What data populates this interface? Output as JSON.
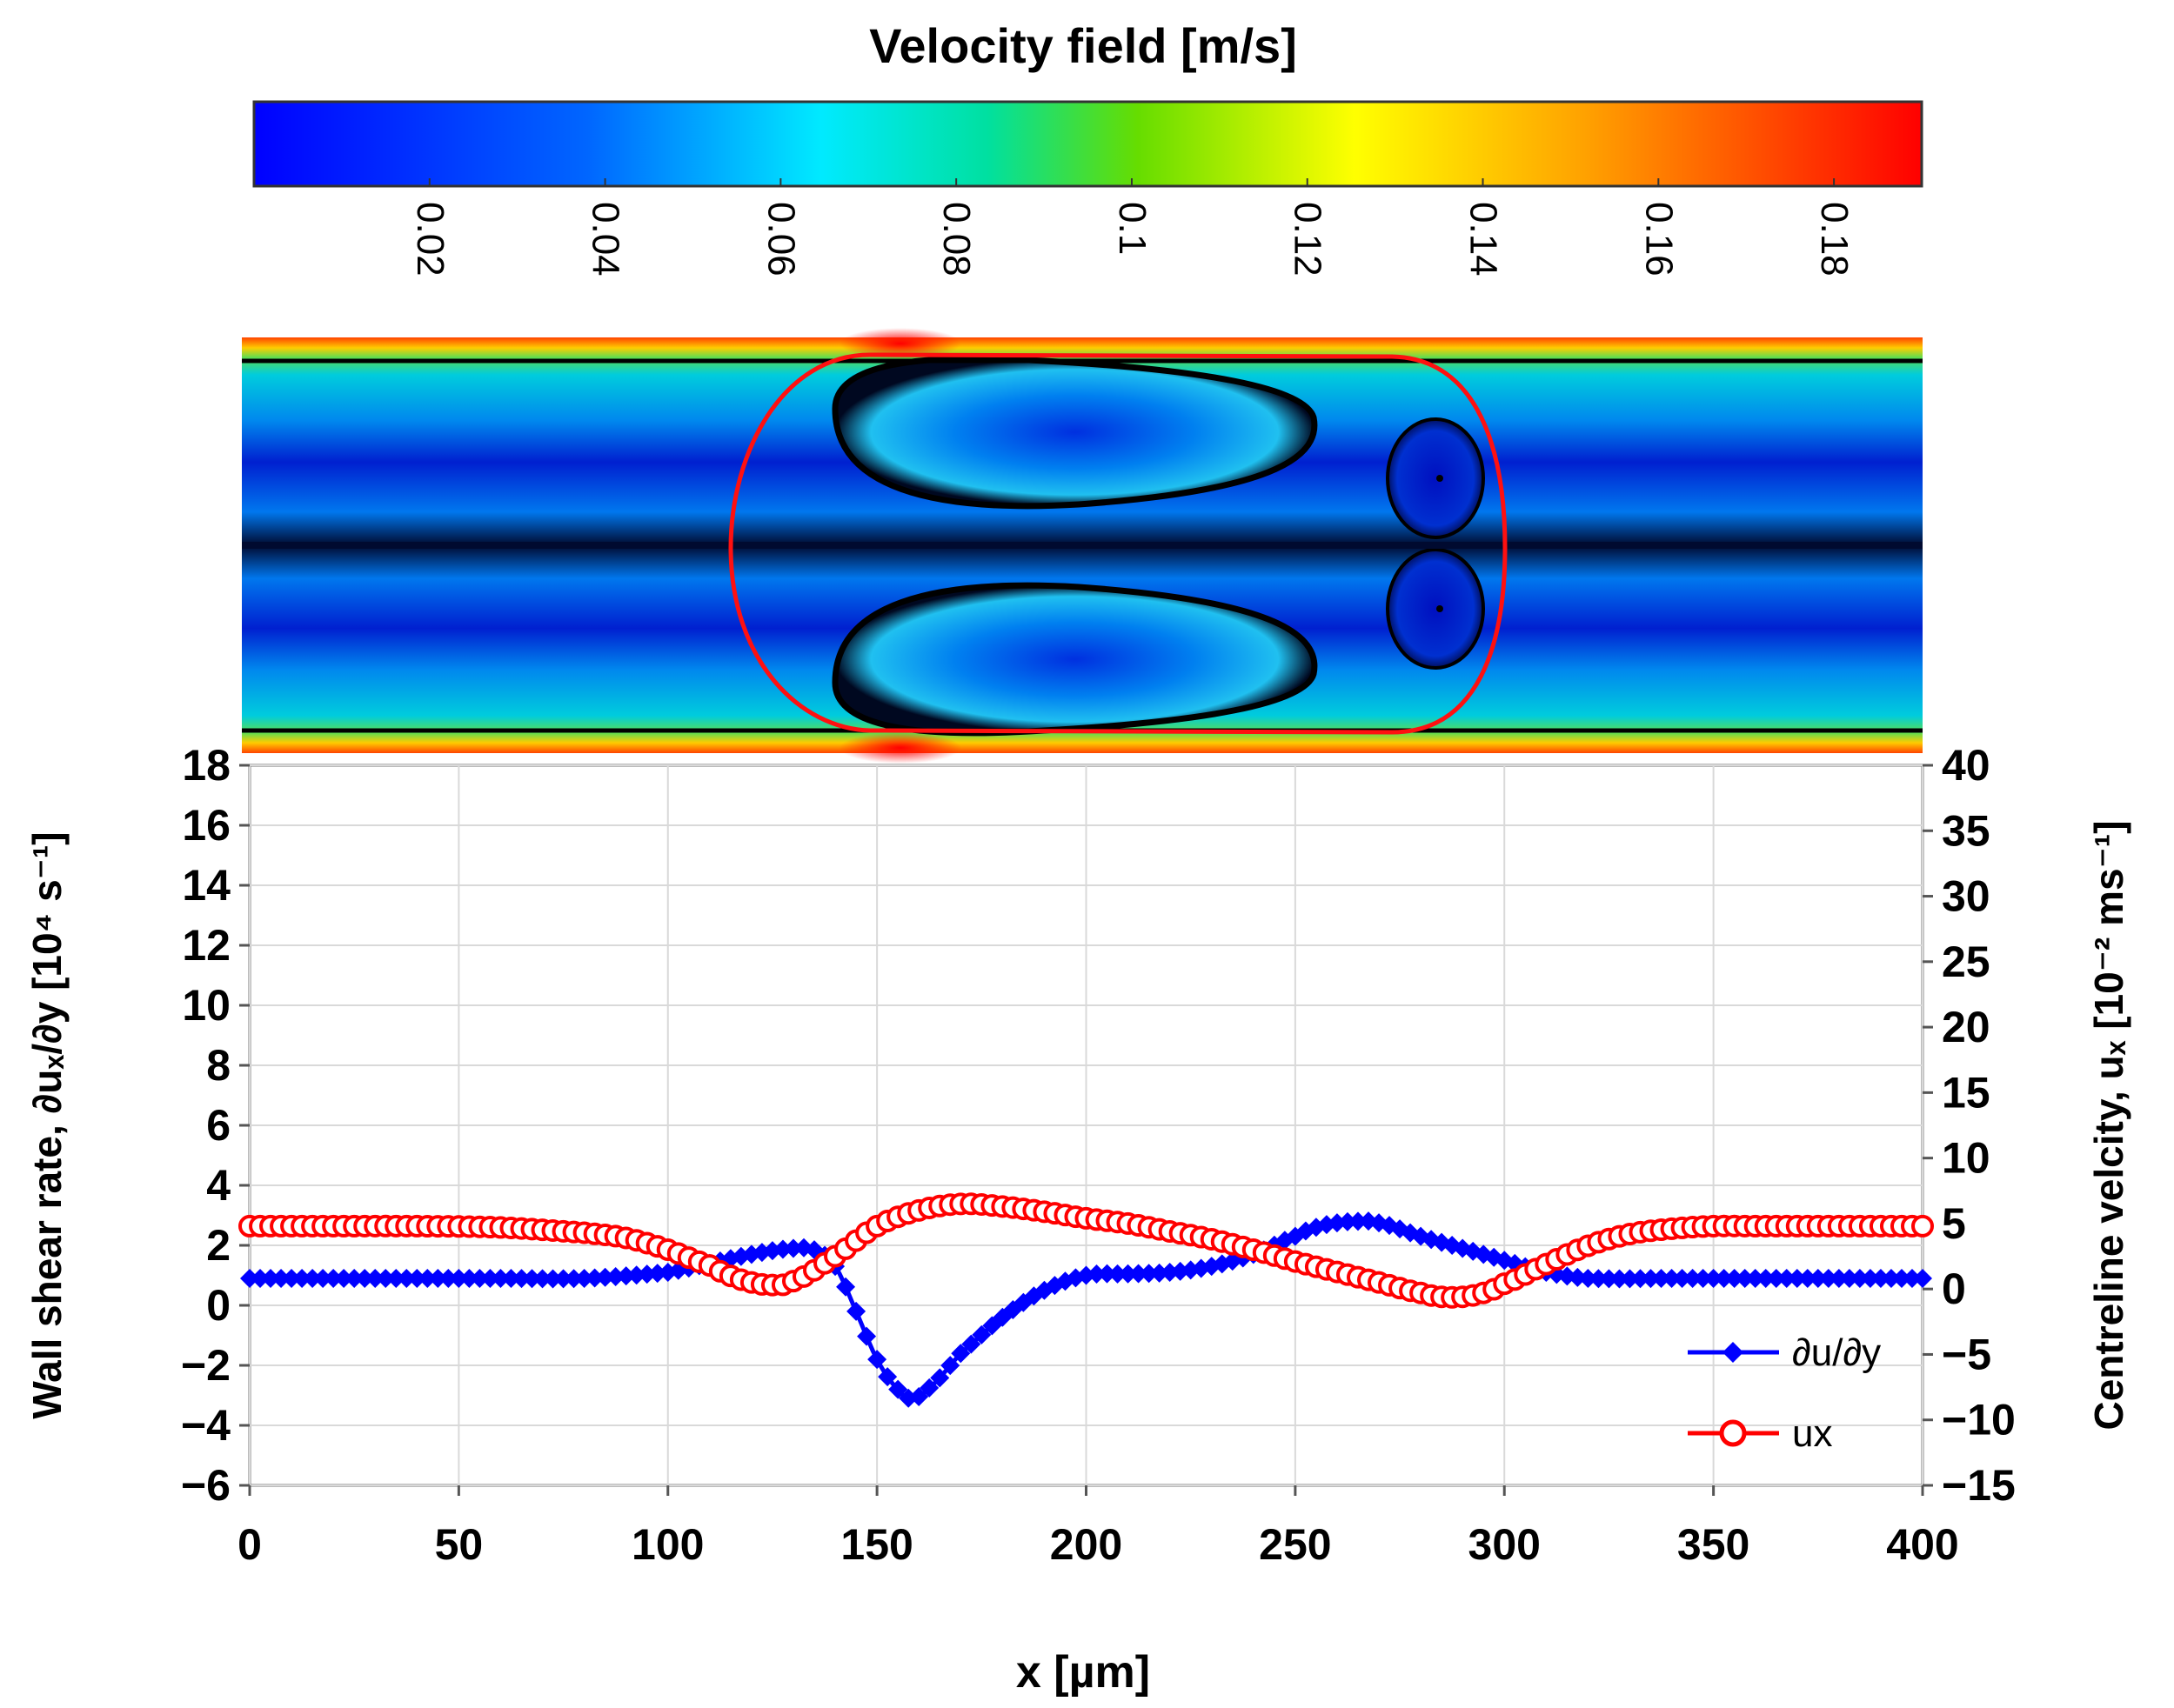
{
  "colorbar": {
    "title": "Velocity field [m/s]",
    "tick_labels": [
      "0.02",
      "0.04",
      "0.06",
      "0.08",
      "0.1",
      "0.12",
      "0.14",
      "0.16",
      "0.18"
    ],
    "range": [
      0,
      0.19
    ],
    "colormap": "rainbow (blue-cyan-green-yellow-red)"
  },
  "chart_data": {
    "type": "line",
    "xlabel": "x [µm]",
    "ylabel_left": "Wall shear rate, ∂uₓ/∂y [10⁴ s⁻¹]",
    "ylabel_right": "Centreline velcity, uₓ [10⁻² ms⁻¹]",
    "xlim": [
      0,
      400
    ],
    "ylim_left": [
      -6,
      18
    ],
    "ylim_right": [
      -15,
      40
    ],
    "x_ticks": [
      "0",
      "50",
      "100",
      "150",
      "200",
      "250",
      "300",
      "350",
      "400"
    ],
    "y_left_ticks": [
      "18",
      "16",
      "14",
      "12",
      "10",
      "8",
      "6",
      "4",
      "2",
      "0",
      "−2",
      "−4",
      "−6"
    ],
    "y_right_ticks": [
      "40",
      "35",
      "30",
      "25",
      "20",
      "15",
      "10",
      "5",
      "0",
      "−5",
      "−10",
      "−15"
    ],
    "grid": true,
    "legend_position": "bottom-right",
    "series": [
      {
        "name": "∂u/∂y",
        "axis": "left",
        "color": "#0000ff",
        "marker": "diamond",
        "x": [
          0,
          20,
          40,
          60,
          80,
          100,
          110,
          120,
          130,
          135,
          140,
          145,
          150,
          155,
          158,
          162,
          170,
          180,
          190,
          200,
          210,
          220,
          230,
          240,
          250,
          255,
          260,
          265,
          270,
          280,
          290,
          300,
          310,
          320,
          340,
          360,
          380,
          400
        ],
        "y": [
          0.9,
          0.9,
          0.9,
          0.9,
          0.9,
          1.1,
          1.4,
          1.7,
          1.9,
          1.85,
          1.3,
          -0.2,
          -1.8,
          -2.8,
          -3.1,
          -2.8,
          -1.6,
          -0.4,
          0.5,
          1.0,
          1.05,
          1.1,
          1.3,
          1.7,
          2.3,
          2.6,
          2.75,
          2.8,
          2.75,
          2.3,
          1.9,
          1.5,
          1.1,
          0.9,
          0.9,
          0.9,
          0.9,
          0.9
        ]
      },
      {
        "name": "ux",
        "axis": "right",
        "color": "#ff0000",
        "marker": "circle",
        "x": [
          0,
          20,
          40,
          60,
          80,
          90,
          100,
          110,
          115,
          120,
          125,
          130,
          140,
          150,
          160,
          170,
          180,
          190,
          200,
          210,
          220,
          230,
          240,
          250,
          260,
          270,
          280,
          285,
          290,
          295,
          300,
          310,
          320,
          330,
          340,
          350,
          360,
          380,
          400
        ],
        "y": [
          4.8,
          4.8,
          4.8,
          4.7,
          4.3,
          3.9,
          3.0,
          1.8,
          1.0,
          0.5,
          0.3,
          0.6,
          2.5,
          4.8,
          6.0,
          6.5,
          6.3,
          5.9,
          5.4,
          5.0,
          4.4,
          3.8,
          3.0,
          2.1,
          1.3,
          0.5,
          -0.3,
          -0.6,
          -0.6,
          -0.3,
          0.4,
          1.9,
          3.3,
          4.2,
          4.6,
          4.8,
          4.8,
          4.8,
          4.8
        ]
      }
    ]
  }
}
